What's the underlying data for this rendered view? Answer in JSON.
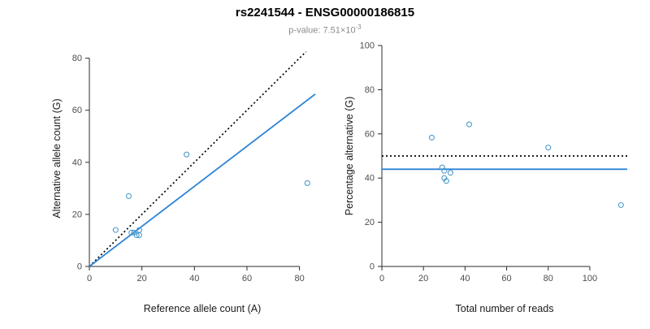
{
  "header": {
    "title": "rs2241544 - ENSG00000186815",
    "subtitle_prefix": "p-value: 7.51×10",
    "subtitle_exponent": "-3"
  },
  "colors": {
    "regression_blue": "#2b83d6",
    "point_blue": "#4e9bcd",
    "identity_black": "#000000",
    "axis": "#2b2b2b",
    "tick_label": "#4d4d4d"
  },
  "chart_data": [
    {
      "type": "scatter",
      "title": "",
      "xlabel": "Reference allele count (A)",
      "ylabel": "Alternative allele count (G)",
      "xlim": [
        0,
        86
      ],
      "ylim": [
        0,
        83
      ],
      "xticks": [
        0,
        20,
        40,
        60,
        80
      ],
      "yticks": [
        0,
        20,
        40,
        60,
        80
      ],
      "grid": false,
      "legend": "none",
      "point_color": "#4e9bcd",
      "points": [
        [
          10,
          14
        ],
        [
          15,
          27
        ],
        [
          16,
          13
        ],
        [
          17,
          13
        ],
        [
          18,
          12
        ],
        [
          19,
          12
        ],
        [
          19,
          14
        ],
        [
          37,
          43
        ],
        [
          83,
          32
        ]
      ],
      "lines": [
        {
          "name": "identity",
          "style": "dotted",
          "color": "#000000",
          "width": 1.7,
          "x": [
            0,
            82.5
          ],
          "y": [
            0,
            82.5
          ]
        },
        {
          "name": "regression",
          "style": "solid",
          "color": "#2b83d6",
          "width": 1.8,
          "x": [
            0,
            86
          ],
          "y": [
            0,
            66.2
          ]
        }
      ]
    },
    {
      "type": "scatter",
      "title": "",
      "xlabel": "Total number of reads",
      "ylabel": "Percentage alternative (G)",
      "xlim": [
        0,
        118
      ],
      "ylim": [
        0,
        100
      ],
      "xticks": [
        0,
        20,
        40,
        60,
        80,
        100
      ],
      "yticks": [
        0,
        20,
        40,
        60,
        80,
        100
      ],
      "grid": false,
      "legend": "none",
      "point_color": "#4e9bcd",
      "points": [
        [
          24,
          58.3
        ],
        [
          42,
          64.3
        ],
        [
          29,
          44.8
        ],
        [
          30,
          43.3
        ],
        [
          30,
          40.0
        ],
        [
          31,
          38.7
        ],
        [
          33,
          42.4
        ],
        [
          80,
          53.8
        ],
        [
          115,
          27.8
        ]
      ],
      "lines": [
        {
          "name": "expected-50pct",
          "style": "dotted",
          "color": "#000000",
          "width": 1.7,
          "x": [
            0,
            118
          ],
          "y": [
            50,
            50
          ]
        },
        {
          "name": "observed-mean",
          "style": "solid",
          "color": "#2b83d6",
          "width": 1.8,
          "x": [
            0,
            118
          ],
          "y": [
            44,
            44
          ]
        }
      ]
    }
  ]
}
